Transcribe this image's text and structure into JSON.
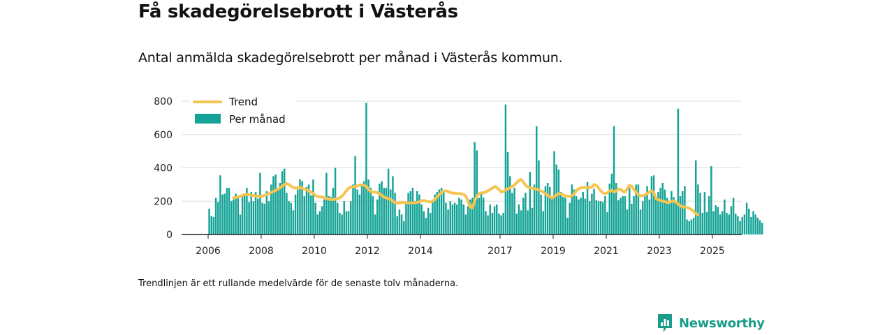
{
  "title": "Få skadegörelsebrott i Västerås",
  "subtitle": "Antal anmälda skadegörelsebrott per månad i Västerås kommun.",
  "note": "Trendlinjen är ett rullande medelvärde för de senaste tolv månaderna.",
  "brand": {
    "name": "Newsworthy"
  },
  "colors": {
    "bars": "#14a396",
    "trend": "#f6c451",
    "grid": "#dddddd",
    "axis": "#222222",
    "brand": "#1a9c8a"
  },
  "chart_data": {
    "type": "bar",
    "x_unit": "month",
    "start": "2006-01",
    "ylim": [
      0,
      800
    ],
    "y_ticks": [
      "0",
      "200",
      "400",
      "600",
      "800"
    ],
    "x_ticks": [
      "2006",
      "2008",
      "2010",
      "2012",
      "2014",
      "2017",
      "2019",
      "2021",
      "2023",
      "2025"
    ],
    "grid": true,
    "legend_position": "top-left",
    "series": [
      {
        "name": "Per månad",
        "type": "bar",
        "values": [
          155,
          110,
          105,
          220,
          195,
          355,
          240,
          245,
          280,
          280,
          200,
          210,
          245,
          220,
          120,
          230,
          240,
          280,
          195,
          255,
          200,
          255,
          215,
          370,
          190,
          185,
          260,
          200,
          300,
          350,
          360,
          270,
          310,
          380,
          395,
          250,
          200,
          190,
          145,
          240,
          270,
          330,
          320,
          230,
          285,
          300,
          235,
          330,
          190,
          120,
          140,
          170,
          210,
          370,
          230,
          225,
          280,
          400,
          190,
          130,
          120,
          200,
          140,
          140,
          200,
          300,
          470,
          270,
          240,
          300,
          320,
          790,
          330,
          280,
          230,
          120,
          210,
          305,
          320,
          280,
          280,
          395,
          270,
          350,
          250,
          110,
          150,
          120,
          80,
          190,
          250,
          260,
          280,
          200,
          260,
          240,
          180,
          140,
          100,
          160,
          130,
          210,
          240,
          255,
          270,
          280,
          255,
          190,
          150,
          200,
          180,
          190,
          180,
          220,
          210,
          180,
          120,
          170,
          210,
          220,
          555,
          505,
          220,
          250,
          220,
          140,
          115,
          180,
          130,
          170,
          180,
          125,
          115,
          130,
          780,
          495,
          350,
          250,
          280,
          125,
          180,
          145,
          220,
          250,
          145,
          375,
          160,
          300,
          650,
          445,
          240,
          140,
          290,
          310,
          285,
          230,
          500,
          420,
          390,
          255,
          225,
          220,
          100,
          190,
          300,
          270,
          230,
          210,
          220,
          255,
          215,
          315,
          200,
          245,
          275,
          205,
          200,
          200,
          195,
          230,
          135,
          305,
          365,
          650,
          310,
          205,
          220,
          230,
          230,
          150,
          280,
          185,
          230,
          300,
          300,
          150,
          200,
          240,
          290,
          210,
          350,
          355,
          220,
          255,
          280,
          310,
          270,
          220,
          185,
          260,
          225,
          200,
          755,
          230,
          260,
          290,
          90,
          80,
          90,
          100,
          445,
          300,
          250,
          130,
          255,
          135,
          230,
          410,
          140,
          175,
          165,
          120,
          140,
          210,
          130,
          120,
          170,
          220,
          125,
          110,
          80,
          105,
          120,
          190,
          155,
          105,
          140,
          120,
          100,
          85,
          70
        ]
      },
      {
        "name": "Trend",
        "type": "line",
        "start": "2006-12",
        "values": [
          220,
          222,
          225,
          230,
          235,
          240,
          240,
          238,
          236,
          234,
          232,
          230,
          228,
          230,
          235,
          240,
          245,
          252,
          258,
          265,
          272,
          280,
          290,
          300,
          305,
          300,
          290,
          282,
          278,
          280,
          282,
          278,
          272,
          268,
          262,
          255,
          245,
          235,
          228,
          225,
          225,
          220,
          215,
          212,
          210,
          210,
          212,
          215,
          220,
          230,
          245,
          262,
          278,
          285,
          285,
          288,
          292,
          296,
          298,
          295,
          288,
          270,
          258,
          255,
          255,
          250,
          245,
          235,
          225,
          220,
          215,
          210,
          200,
          192,
          188,
          190,
          192,
          192,
          190,
          190,
          190,
          190,
          190,
          192,
          198,
          202,
          205,
          200,
          197,
          196,
          200,
          210,
          225,
          238,
          252,
          262,
          262,
          258,
          252,
          248,
          248,
          246,
          246,
          244,
          240,
          230,
          200,
          165,
          160,
          200,
          230,
          245,
          250,
          250,
          255,
          262,
          270,
          278,
          288,
          282,
          270,
          255,
          258,
          268,
          275,
          280,
          288,
          298,
          310,
          325,
          330,
          315,
          295,
          285,
          280,
          278,
          275,
          272,
          268,
          262,
          255,
          245,
          235,
          225,
          220,
          228,
          238,
          245,
          242,
          238,
          232,
          230,
          228,
          232,
          245,
          262,
          275,
          280,
          282,
          282,
          282,
          280,
          285,
          300,
          295,
          280,
          262,
          250,
          245,
          250,
          262,
          265,
          255,
          262,
          272,
          272,
          260,
          255,
          275,
          295,
          290,
          270,
          255,
          240,
          232,
          232,
          238,
          245,
          255,
          262,
          250,
          215,
          208,
          205,
          200,
          198,
          192,
          195,
          198,
          200,
          195,
          185,
          172,
          165,
          165,
          162,
          158,
          150,
          140,
          125,
          118
        ]
      }
    ]
  }
}
